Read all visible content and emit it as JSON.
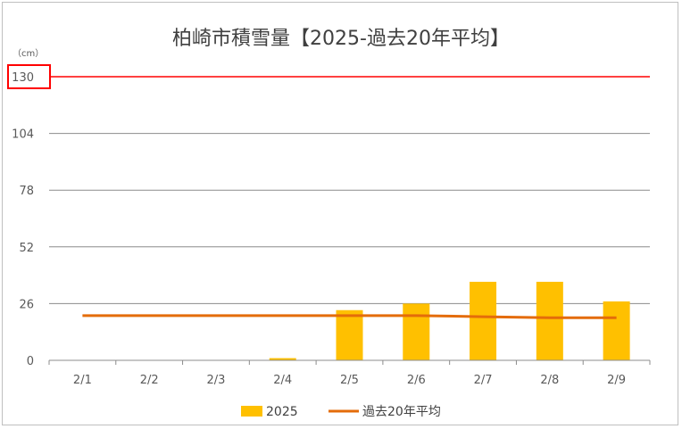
{
  "chart_data": {
    "type": "bar",
    "title": "柏崎市積雪量【2025-過去20年平均】",
    "unit_label": "（cm）",
    "categories": [
      "2/1",
      "2/2",
      "2/3",
      "2/4",
      "2/5",
      "2/6",
      "2/7",
      "2/8",
      "2/9"
    ],
    "ylim": [
      0,
      130
    ],
    "yticks": [
      "0",
      "26",
      "52",
      "78",
      "104",
      "130"
    ],
    "highlighted_tick": "130",
    "reference_line": {
      "value": 130,
      "color": "#ff0000"
    },
    "series": [
      {
        "name": "2025",
        "type": "bar",
        "color": "#ffc000",
        "values": [
          0,
          0,
          0,
          1,
          23,
          26,
          36,
          36,
          27
        ]
      },
      {
        "name": "過去20年平均",
        "type": "line",
        "color": "#e46c0a",
        "values": [
          20.5,
          20.5,
          20.5,
          20.5,
          20.5,
          20.5,
          20,
          19.5,
          19.5
        ]
      }
    ],
    "grid": true,
    "legend": "bottom"
  }
}
